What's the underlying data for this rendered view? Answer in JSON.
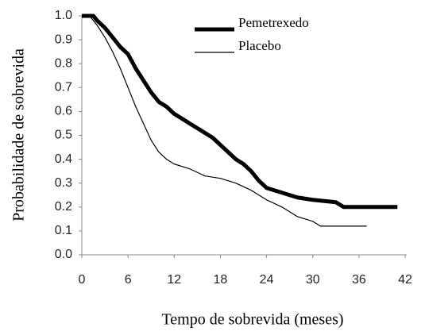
{
  "chart_data": {
    "type": "line",
    "x_label": "Tempo de sobrevida (meses)",
    "y_label": "Probabilidade de sobrevida",
    "xlim": [
      0,
      42
    ],
    "xticks": [
      0,
      6,
      12,
      18,
      24,
      30,
      36,
      42
    ],
    "ylim": [
      0,
      1
    ],
    "yticks": [
      {
        "value": 0,
        "label": "0.0"
      },
      0.1,
      0.2,
      0.3,
      0.4,
      0.5,
      0.6,
      0.7,
      0.8,
      0.9,
      {
        "value": 1,
        "label": "1.0"
      }
    ],
    "grid": false,
    "legend": "upper right",
    "series": [
      {
        "name": "Pemetrexedo",
        "color": "#000000",
        "width": 5,
        "x": [
          0,
          1.5,
          2,
          3,
          4,
          5,
          6,
          7,
          8,
          9,
          10,
          11,
          12,
          13,
          14,
          15,
          16,
          17,
          18,
          19,
          20,
          21,
          22,
          23,
          24,
          25,
          26,
          28,
          30,
          33,
          34,
          41
        ],
        "values": [
          1.0,
          1.0,
          0.98,
          0.95,
          0.91,
          0.87,
          0.84,
          0.78,
          0.73,
          0.68,
          0.64,
          0.62,
          0.59,
          0.57,
          0.55,
          0.53,
          0.51,
          0.49,
          0.46,
          0.43,
          0.4,
          0.38,
          0.35,
          0.31,
          0.28,
          0.27,
          0.26,
          0.24,
          0.23,
          0.22,
          0.2,
          0.2
        ]
      },
      {
        "name": "Placebo",
        "color": "#000000",
        "width": 1.2,
        "x": [
          0,
          1,
          2,
          3,
          4,
          5,
          6,
          7,
          8,
          9,
          10,
          11,
          12,
          14,
          16,
          18,
          20,
          22,
          24,
          26,
          28,
          30,
          31,
          37
        ],
        "values": [
          1.0,
          1.0,
          0.96,
          0.91,
          0.85,
          0.78,
          0.7,
          0.62,
          0.55,
          0.48,
          0.43,
          0.4,
          0.38,
          0.36,
          0.33,
          0.32,
          0.3,
          0.27,
          0.23,
          0.2,
          0.16,
          0.14,
          0.12,
          0.12
        ]
      }
    ]
  }
}
